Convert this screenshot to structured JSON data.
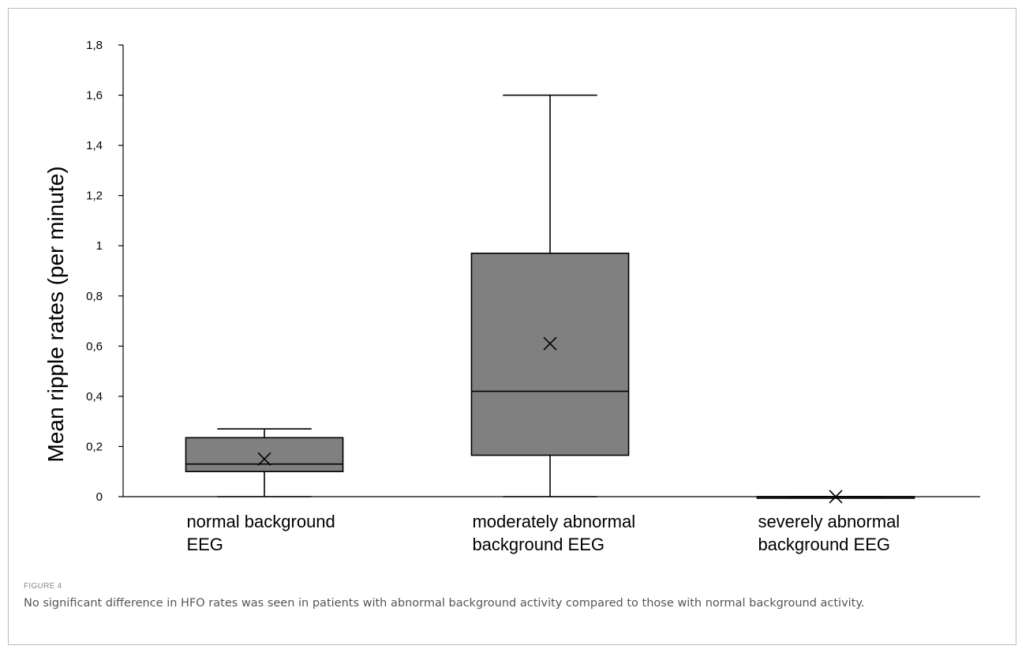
{
  "figure": {
    "label": "FIGURE 4",
    "caption": "No significant difference in HFO rates was seen in patients with abnormal background activity compared to those with normal background activity."
  },
  "chart_data": {
    "type": "box",
    "ylabel": "Mean ripple rates (per minute)",
    "ylim": [
      0,
      1.8
    ],
    "yticks": [
      0,
      0.2,
      0.4,
      0.6,
      0.8,
      1,
      1.2,
      1.4,
      1.6,
      1.8
    ],
    "ytick_labels": [
      "0",
      "0,2",
      "0,4",
      "0,6",
      "0,8",
      "1",
      "1,2",
      "1,4",
      "1,6",
      "1,8"
    ],
    "categories": [
      [
        "normal background",
        "EEG"
      ],
      [
        "moderately abnormal",
        "background EEG"
      ],
      [
        "severely abnormal",
        "background EEG"
      ]
    ],
    "boxes": [
      {
        "min": 0,
        "q1": 0.1,
        "median": 0.13,
        "q3": 0.235,
        "max": 0.27,
        "mean": 0.15
      },
      {
        "min": 0,
        "q1": 0.165,
        "median": 0.42,
        "q3": 0.97,
        "max": 1.6,
        "mean": 0.61
      },
      {
        "min": 0,
        "q1": 0,
        "median": 0,
        "q3": 0,
        "max": 0,
        "mean": 0
      }
    ],
    "box_color": "#808080",
    "grid": false
  }
}
